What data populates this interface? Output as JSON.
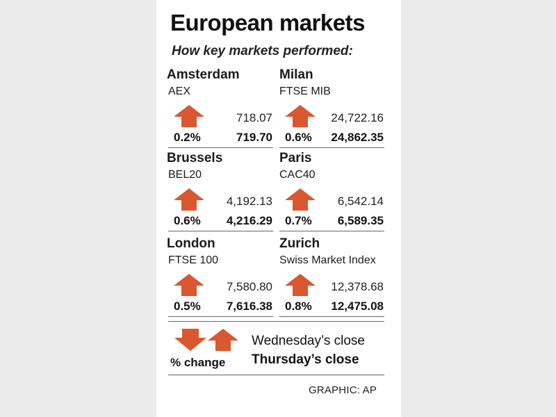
{
  "title": "European markets",
  "subtitle": "How key markets performed:",
  "colors": {
    "arrow": "#d9582f",
    "rule": "#666666",
    "background": "#ebebeb",
    "card": "#ffffff"
  },
  "chart_data": {
    "type": "table",
    "columns": [
      "city",
      "index",
      "direction",
      "pct_change",
      "wednesday_close",
      "thursday_close"
    ],
    "markets": [
      {
        "city": "Amsterdam",
        "index": "AEX",
        "direction": "up",
        "pct_change": "0.2%",
        "wednesday_close": "718.07",
        "thursday_close": "719.70"
      },
      {
        "city": "Milan",
        "index": "FTSE MIB",
        "direction": "up",
        "pct_change": "0.6%",
        "wednesday_close": "24,722.16",
        "thursday_close": "24,862.35"
      },
      {
        "city": "Brussels",
        "index": "BEL20",
        "direction": "up",
        "pct_change": "0.6%",
        "wednesday_close": "4,192.13",
        "thursday_close": "4,216.29"
      },
      {
        "city": "Paris",
        "index": "CAC40",
        "direction": "up",
        "pct_change": "0.7%",
        "wednesday_close": "6,542.14",
        "thursday_close": "6,589.35"
      },
      {
        "city": "London",
        "index": "FTSE 100",
        "direction": "up",
        "pct_change": "0.5%",
        "wednesday_close": "7,580.80",
        "thursday_close": "7,616.38"
      },
      {
        "city": "Zurich",
        "index": "Swiss Market Index",
        "direction": "up",
        "pct_change": "0.8%",
        "wednesday_close": "12,378.68",
        "thursday_close": "12,475.08"
      }
    ]
  },
  "legend": {
    "pct_label": "% change",
    "wednesday_label": "Wednesday’s close",
    "thursday_label": "Thursday’s close",
    "icons": [
      "arrow-down-icon",
      "arrow-up-icon"
    ]
  },
  "credit": "GRAPHIC: AP"
}
